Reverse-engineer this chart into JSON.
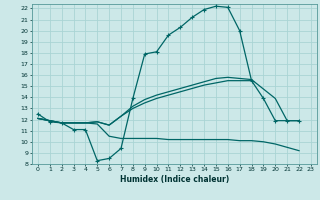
{
  "xlabel": "Humidex (Indice chaleur)",
  "background_color": "#cce8e8",
  "grid_color": "#aad4d4",
  "line_color": "#006666",
  "xlim": [
    -0.5,
    23.5
  ],
  "ylim": [
    8,
    22.4
  ],
  "s1_x": [
    0,
    1,
    2,
    3,
    4,
    5,
    6,
    7,
    8,
    9,
    10,
    11,
    12,
    13,
    14,
    15,
    16,
    17,
    18,
    19,
    20,
    21,
    22
  ],
  "s1_y": [
    12.5,
    11.8,
    11.7,
    11.1,
    11.1,
    8.3,
    8.5,
    9.4,
    13.9,
    17.9,
    18.1,
    19.6,
    20.3,
    21.2,
    21.9,
    22.2,
    22.1,
    20.0,
    15.5,
    13.9,
    11.9,
    11.9,
    11.9
  ],
  "s2_x": [
    0,
    2,
    3,
    4,
    5,
    6,
    7,
    8,
    9,
    10,
    11,
    12,
    13,
    14,
    15,
    16,
    17,
    18,
    19,
    20,
    22
  ],
  "s2_y": [
    12.1,
    11.7,
    11.7,
    11.7,
    11.6,
    10.5,
    10.3,
    10.3,
    10.3,
    10.3,
    10.2,
    10.2,
    10.2,
    10.2,
    10.2,
    10.2,
    10.1,
    10.1,
    10.0,
    9.8,
    9.2
  ],
  "s3_x": [
    0,
    2,
    3,
    4,
    5,
    6,
    7,
    8,
    9,
    10,
    11,
    12,
    13,
    14,
    15,
    16,
    17,
    18
  ],
  "s3_y": [
    12.1,
    11.7,
    11.7,
    11.7,
    11.8,
    11.5,
    12.3,
    13.0,
    13.5,
    13.9,
    14.2,
    14.5,
    14.8,
    15.1,
    15.3,
    15.5,
    15.5,
    15.5
  ],
  "s4_x": [
    0,
    2,
    3,
    4,
    5,
    6,
    7,
    8,
    9,
    10,
    11,
    12,
    13,
    14,
    15,
    16,
    17,
    18,
    20,
    21,
    22
  ],
  "s4_y": [
    12.1,
    11.7,
    11.7,
    11.7,
    11.8,
    11.5,
    12.3,
    13.2,
    13.8,
    14.2,
    14.5,
    14.8,
    15.1,
    15.4,
    15.7,
    15.8,
    15.7,
    15.6,
    13.9,
    11.9,
    11.9
  ],
  "xticks": [
    0,
    1,
    2,
    3,
    4,
    5,
    6,
    7,
    8,
    9,
    10,
    11,
    12,
    13,
    14,
    15,
    16,
    17,
    18,
    19,
    20,
    21,
    22,
    23
  ],
  "yticks": [
    8,
    9,
    10,
    11,
    12,
    13,
    14,
    15,
    16,
    17,
    18,
    19,
    20,
    21,
    22
  ]
}
